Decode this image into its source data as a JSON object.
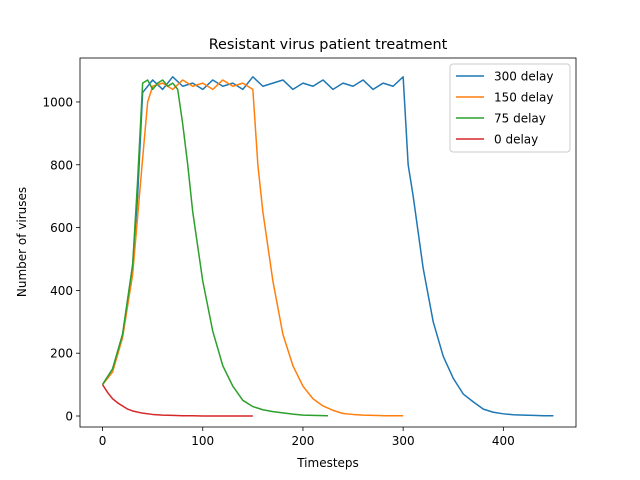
{
  "chart_data": {
    "type": "line",
    "title": "Resistant virus patient treatment",
    "xlabel": "Timesteps",
    "ylabel": "Number of viruses",
    "xlim": [
      -22.5,
      472.5
    ],
    "ylim": [
      -35,
      1140
    ],
    "xticks": [
      0,
      100,
      200,
      300,
      400
    ],
    "yticks": [
      0,
      200,
      400,
      600,
      800,
      1000
    ],
    "grid": false,
    "legend_position": "top-right",
    "series": [
      {
        "name": "300 delay",
        "color": "#1f77b4",
        "x": [
          0,
          10,
          20,
          30,
          35,
          40,
          50,
          60,
          70,
          80,
          90,
          100,
          110,
          120,
          130,
          140,
          150,
          160,
          170,
          180,
          190,
          200,
          210,
          220,
          230,
          240,
          250,
          260,
          270,
          280,
          290,
          300,
          305,
          310,
          320,
          330,
          340,
          350,
          360,
          370,
          380,
          390,
          400,
          410,
          420,
          430,
          440,
          450
        ],
        "y": [
          100,
          150,
          260,
          480,
          700,
          1030,
          1070,
          1040,
          1080,
          1050,
          1060,
          1040,
          1070,
          1050,
          1060,
          1040,
          1080,
          1050,
          1060,
          1070,
          1040,
          1060,
          1050,
          1070,
          1040,
          1060,
          1050,
          1070,
          1040,
          1060,
          1050,
          1080,
          800,
          700,
          470,
          300,
          190,
          120,
          70,
          45,
          22,
          12,
          7,
          4,
          3,
          2,
          1,
          1
        ]
      },
      {
        "name": "150 delay",
        "color": "#ff7f0e",
        "x": [
          0,
          10,
          20,
          30,
          40,
          45,
          50,
          60,
          70,
          80,
          90,
          100,
          110,
          120,
          130,
          140,
          150,
          155,
          160,
          170,
          180,
          190,
          200,
          210,
          220,
          230,
          240,
          250,
          260,
          270,
          280,
          290,
          300
        ],
        "y": [
          100,
          140,
          250,
          450,
          820,
          1000,
          1050,
          1060,
          1040,
          1070,
          1050,
          1060,
          1040,
          1070,
          1050,
          1060,
          1040,
          800,
          650,
          430,
          260,
          160,
          95,
          55,
          32,
          18,
          8,
          5,
          3,
          2,
          1,
          1,
          1
        ]
      },
      {
        "name": "75 delay",
        "color": "#2ca02c",
        "x": [
          0,
          10,
          20,
          30,
          35,
          40,
          45,
          50,
          55,
          60,
          65,
          70,
          75,
          80,
          85,
          90,
          100,
          110,
          120,
          130,
          140,
          150,
          160,
          170,
          180,
          190,
          200,
          210,
          225
        ],
        "y": [
          100,
          150,
          260,
          480,
          750,
          1060,
          1070,
          1040,
          1060,
          1070,
          1050,
          1060,
          1040,
          930,
          800,
          650,
          430,
          270,
          160,
          95,
          50,
          30,
          20,
          14,
          10,
          6,
          3,
          2,
          1
        ]
      },
      {
        "name": "0 delay",
        "color": "#d62728",
        "x": [
          0,
          5,
          10,
          15,
          20,
          25,
          30,
          40,
          50,
          60,
          70,
          80,
          90,
          100,
          110,
          120,
          130,
          140,
          150
        ],
        "y": [
          100,
          75,
          55,
          42,
          32,
          22,
          16,
          9,
          5,
          3,
          2,
          1,
          1,
          0,
          0,
          0,
          0,
          0,
          0
        ]
      }
    ]
  }
}
